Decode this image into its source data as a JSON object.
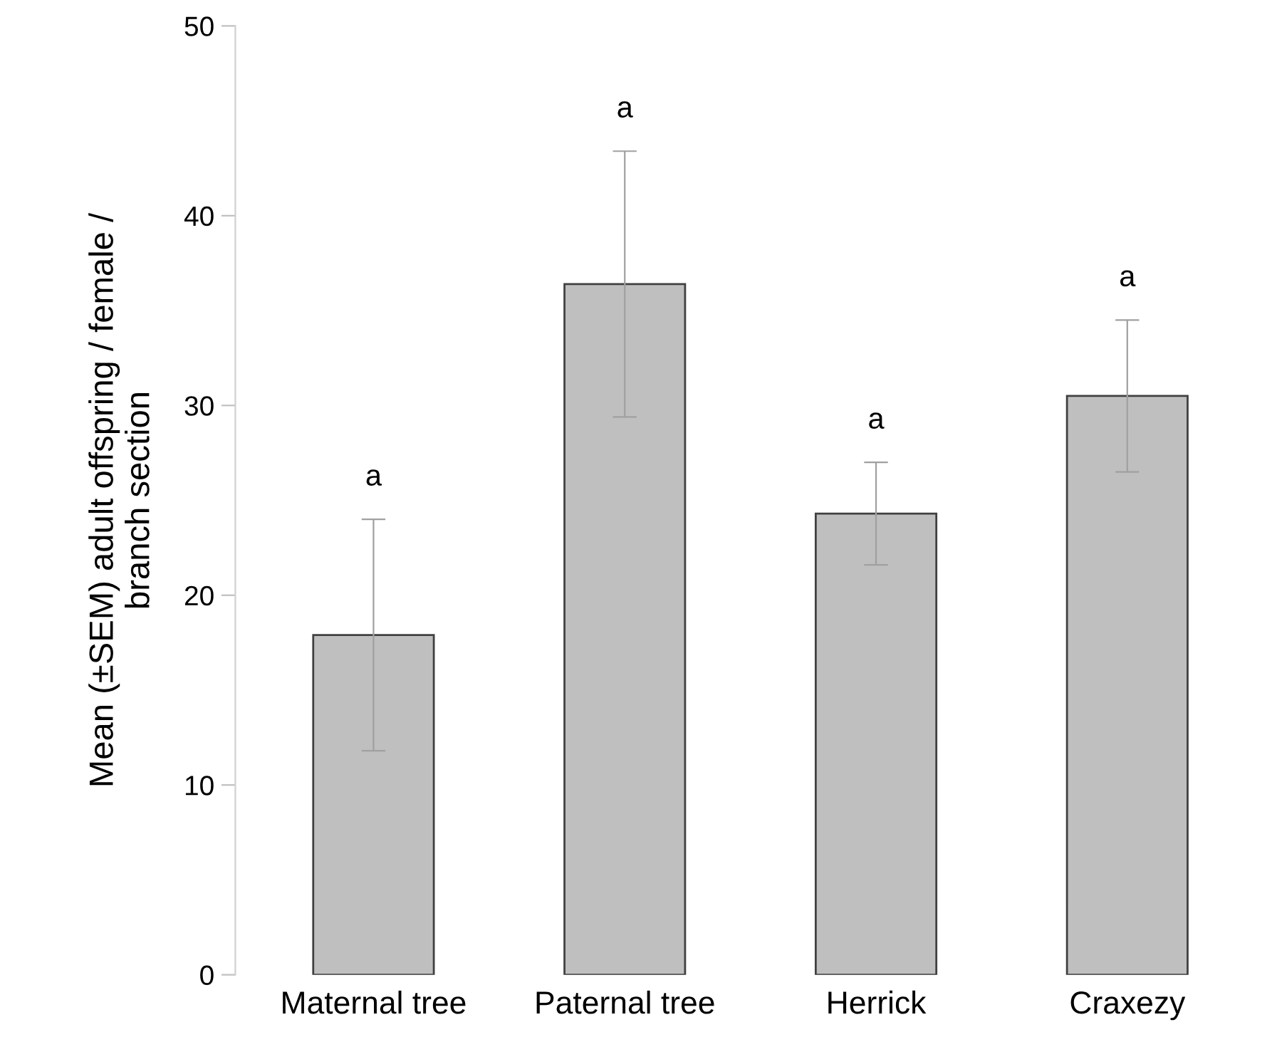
{
  "chart_data": {
    "type": "bar",
    "ylabel": "Mean (±SEM) adult offspring / female /\nbranch section",
    "categories": [
      "Maternal tree",
      "Paternal tree",
      "Herrick",
      "Craxezy"
    ],
    "values": [
      17.9,
      36.4,
      24.3,
      30.5
    ],
    "errors": [
      6.1,
      7.0,
      2.7,
      4.0
    ],
    "color": "#bfbfbf",
    "ylim": [
      0,
      50
    ],
    "yticks": [
      0,
      10,
      20,
      30,
      40,
      50
    ],
    "grid": false,
    "legend": false,
    "annotations": [
      "a",
      "a",
      "a",
      "a"
    ]
  }
}
